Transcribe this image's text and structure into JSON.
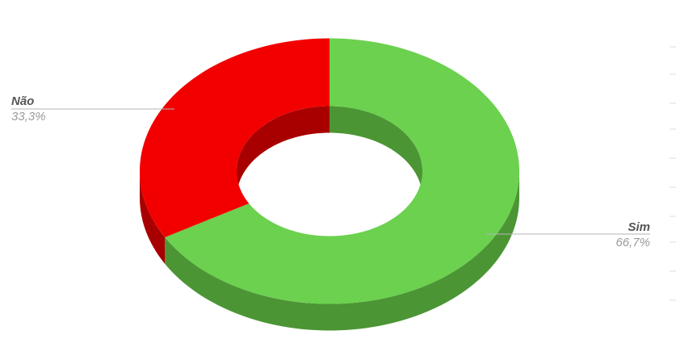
{
  "chart_data": {
    "type": "pie",
    "style": "3d-donut",
    "categories": [
      "Sim",
      "Não"
    ],
    "values": [
      66.7,
      33.3
    ],
    "labels": [
      "66,7%",
      "33,3%"
    ],
    "colors": [
      "#6bd14e",
      "#f20000"
    ],
    "side_colors": [
      "#4c9535",
      "#a80000"
    ],
    "title": ""
  }
}
